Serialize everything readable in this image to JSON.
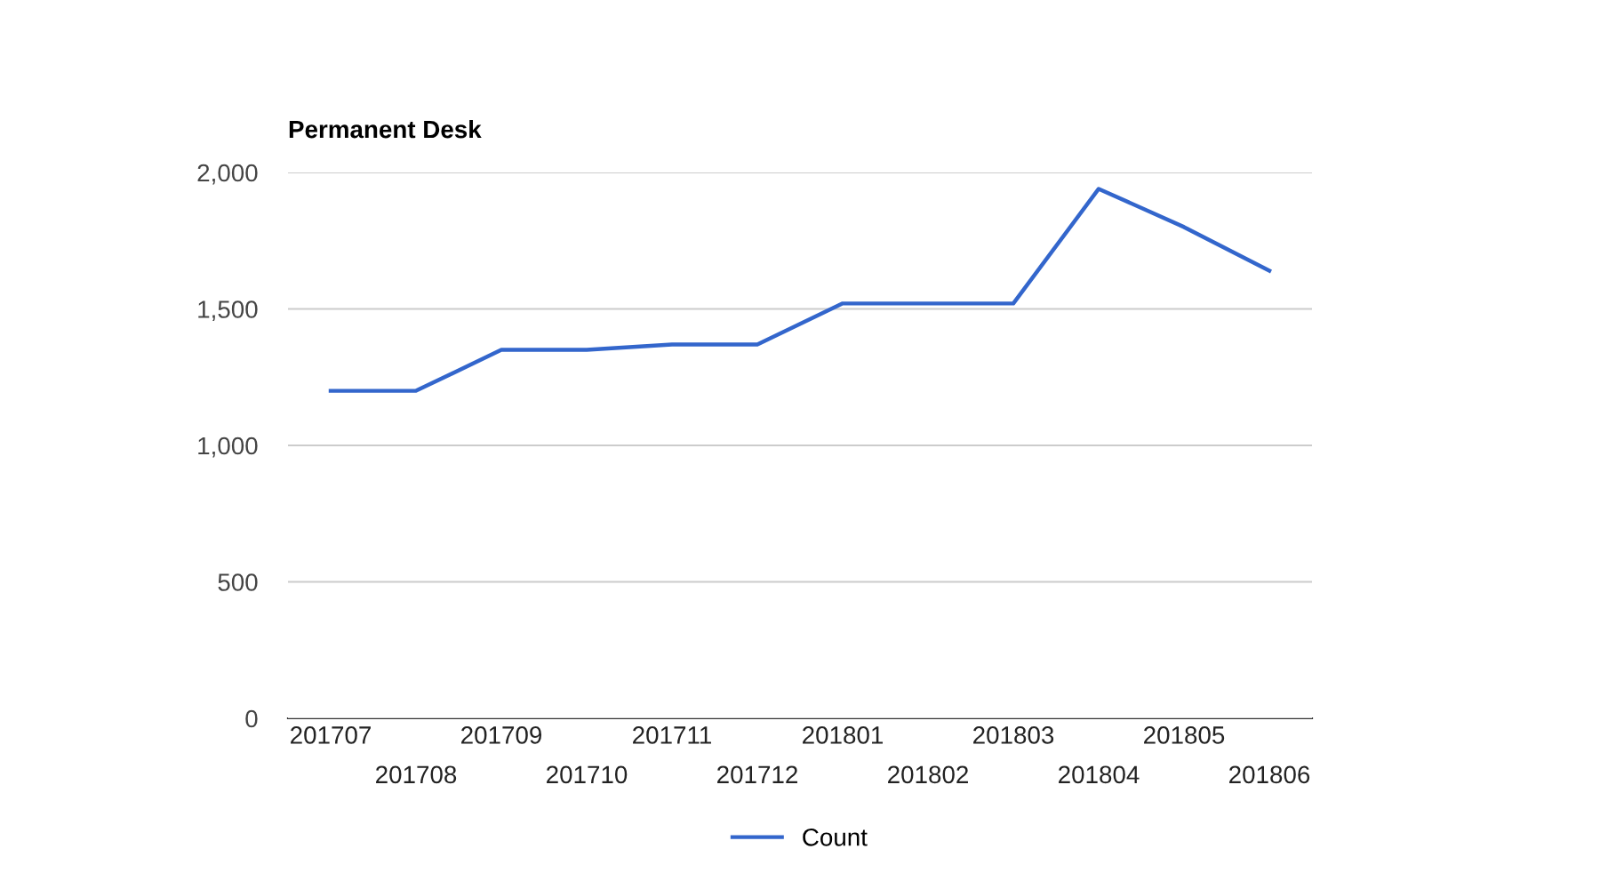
{
  "chart_data": {
    "type": "line",
    "title": "Permanent Desk",
    "categories": [
      "201707",
      "201708",
      "201709",
      "201710",
      "201711",
      "201712",
      "201801",
      "201802",
      "201803",
      "201804",
      "201805",
      "201806"
    ],
    "series": [
      {
        "name": "Count",
        "color": "#3366cc",
        "values": [
          1200,
          1200,
          1350,
          1350,
          1370,
          1370,
          1520,
          1520,
          1520,
          1940,
          1800,
          1640
        ]
      }
    ],
    "ylim": [
      0,
      2000
    ],
    "yticks": [
      {
        "value": 0,
        "label": "0"
      },
      {
        "value": 500,
        "label": "500"
      },
      {
        "value": 1000,
        "label": "1,000"
      },
      {
        "value": 1500,
        "label": "1,500"
      },
      {
        "value": 2000,
        "label": "2,000"
      }
    ],
    "grid": "y",
    "legend": "bottom",
    "marker": "none",
    "line_style": "solid"
  }
}
